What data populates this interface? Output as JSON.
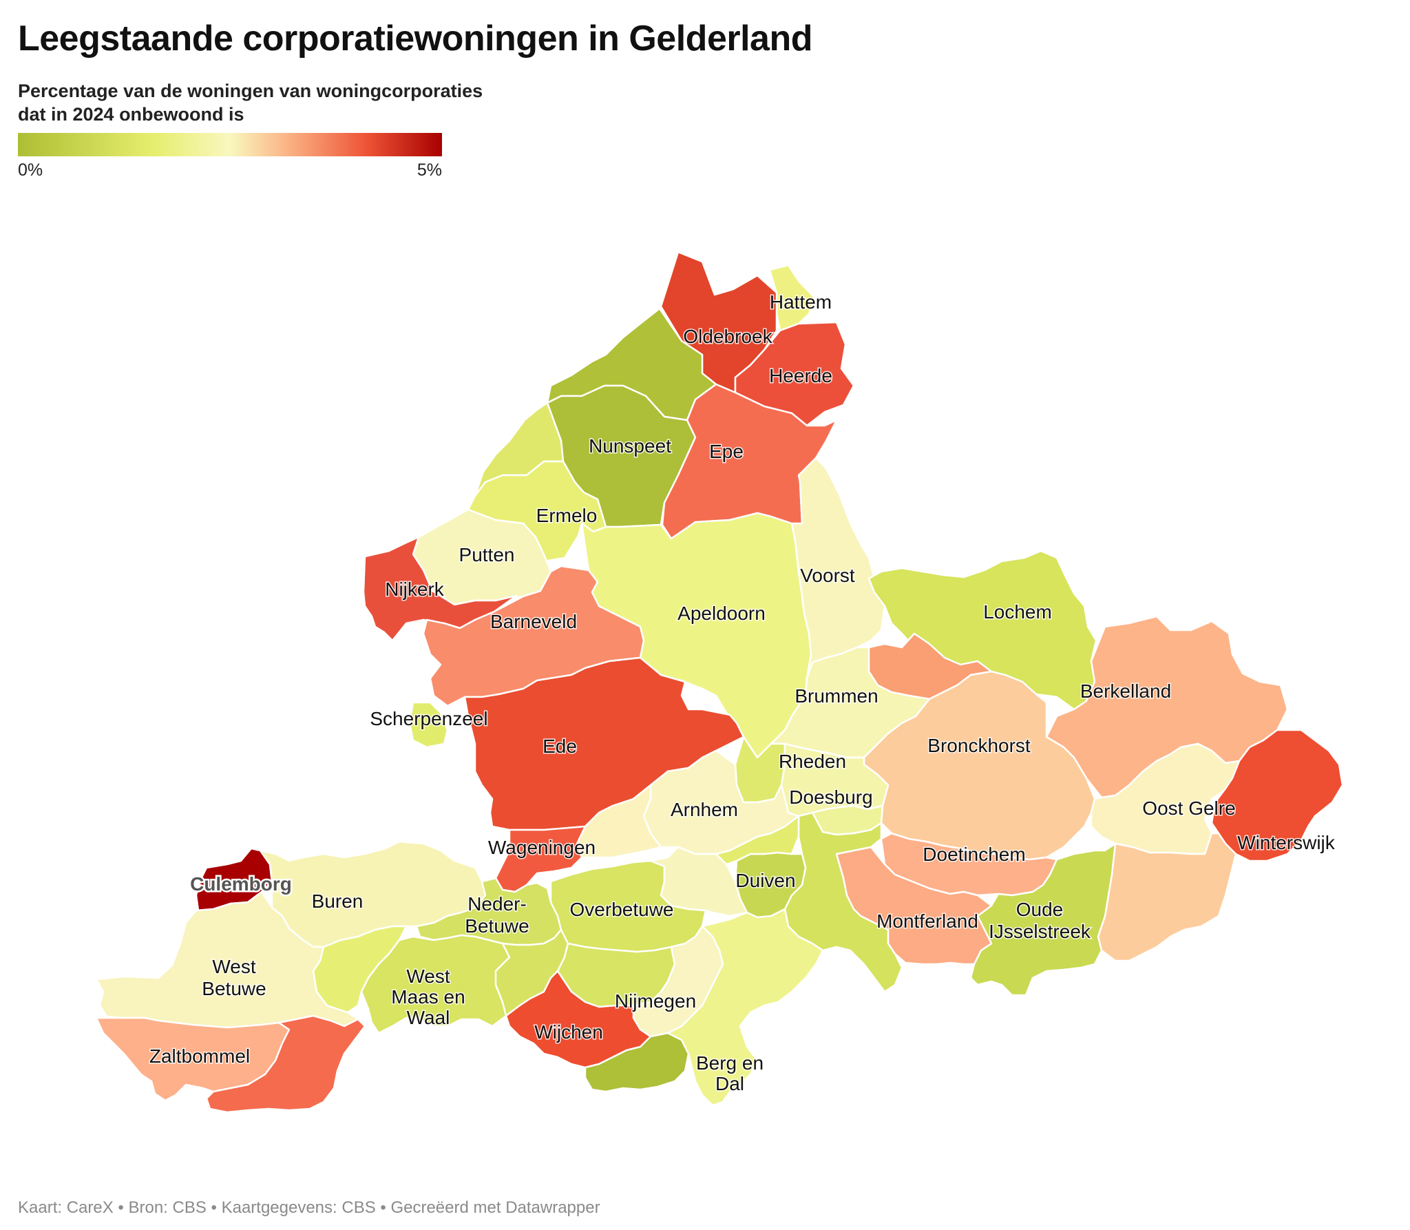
{
  "title": "Leegstaande corporatiewoningen in Gelderland",
  "subtitle": "Percentage van de woningen van woningcorporaties dat in 2024 onbewoond is",
  "legend": {
    "min_label": "0%",
    "max_label": "5%",
    "colors": [
      "#aebe34",
      "#e6ee6e",
      "#f9f7bf",
      "#fbb688",
      "#ee5536",
      "#a80000"
    ]
  },
  "footer": "Kaart: CareX • Bron: CBS • Kaartgegevens: CBS • Gecreëerd met Datawrapper",
  "municipalities": [
    {
      "id": "hattem",
      "name": "Hattem",
      "color": "#eef182"
    },
    {
      "id": "oldebroek",
      "name": "Oldebroek",
      "color": "#e2452b"
    },
    {
      "id": "heerde",
      "name": "Heerde",
      "color": "#ec503a"
    },
    {
      "id": "elburg",
      "name": "",
      "color": "#b0c038"
    },
    {
      "id": "nunspeet",
      "name": "Nunspeet",
      "color": "#adbf38"
    },
    {
      "id": "epe",
      "name": "Epe",
      "color": "#f56d51"
    },
    {
      "id": "harderwijk",
      "name": "",
      "color": "#dfe86a"
    },
    {
      "id": "ermelo",
      "name": "Ermelo",
      "color": "#e8ef74"
    },
    {
      "id": "putten",
      "name": "Putten",
      "color": "#f8f5bc"
    },
    {
      "id": "nijkerk",
      "name": "Nijkerk",
      "color": "#e9503b"
    },
    {
      "id": "barneveld",
      "name": "Barneveld",
      "color": "#f98c6a"
    },
    {
      "id": "apeldoorn",
      "name": "Apeldoorn",
      "color": "#eef386"
    },
    {
      "id": "voorst",
      "name": "Voorst",
      "color": "#f9f4bc"
    },
    {
      "id": "lochem",
      "name": "Lochem",
      "color": "#d7e45c"
    },
    {
      "id": "zutphen",
      "name": "",
      "color": "#fa9e73"
    },
    {
      "id": "brummen",
      "name": "Brummen",
      "color": "#f6f5b3"
    },
    {
      "id": "berkelland",
      "name": "Berkelland",
      "color": "#fdb488"
    },
    {
      "id": "bronckhorst",
      "name": "Bronckhorst",
      "color": "#fdcc9c"
    },
    {
      "id": "ede",
      "name": "Ede",
      "color": "#ea4d30"
    },
    {
      "id": "scherpenzeel",
      "name": "Scherpenzeel",
      "color": "#e2ec6c"
    },
    {
      "id": "rheden",
      "name": "Rheden",
      "color": "#f4f4ab"
    },
    {
      "id": "rozendaal",
      "name": "",
      "color": "#dfe96d"
    },
    {
      "id": "doesburg",
      "name": "Doesburg",
      "color": "#eef39a"
    },
    {
      "id": "arnhem",
      "name": "Arnhem",
      "color": "#f9f4c1"
    },
    {
      "id": "wageningen",
      "name": "Wageningen",
      "color": "#f25a3f"
    },
    {
      "id": "renkum",
      "name": "",
      "color": "#fbf2bd"
    },
    {
      "id": "oostgelre",
      "name": "Oost Gelre",
      "color": "#fbf2c0"
    },
    {
      "id": "winterswijk",
      "name": "Winterswijk",
      "color": "#ee4e32"
    },
    {
      "id": "aalten",
      "name": "",
      "color": "#fdcc9c"
    },
    {
      "id": "doetinchem",
      "name": "Doetinchem",
      "color": "#fdb08a"
    },
    {
      "id": "montferland",
      "name": "Montferland",
      "color": "#fcab84"
    },
    {
      "id": "oudeijsselstreek",
      "name": "Oude IJsselstreek",
      "color": "#c9d952"
    },
    {
      "id": "zevenaar",
      "name": "",
      "color": "#d5e25e"
    },
    {
      "id": "duiven",
      "name": "Duiven",
      "color": "#c7d751"
    },
    {
      "id": "westervoort",
      "name": "",
      "color": "#e4ec70"
    },
    {
      "id": "culemborg",
      "name": "Culemborg",
      "color": "#a80000"
    },
    {
      "id": "buren",
      "name": "Buren",
      "color": "#f7f3b4"
    },
    {
      "id": "nederbetuwe",
      "name": "Neder-Betuwe",
      "color": "#d4e162"
    },
    {
      "id": "overbetuwe",
      "name": "Overbetuwe",
      "color": "#d8e462"
    },
    {
      "id": "lingewaard",
      "name": "",
      "color": "#f8f4bd"
    },
    {
      "id": "westbetuwe",
      "name": "West Betuwe",
      "color": "#f9f3bd"
    },
    {
      "id": "tiel",
      "name": "",
      "color": "#e6ef73"
    },
    {
      "id": "westmaasenwaal",
      "name": "West Maas en Waal",
      "color": "#d8e462"
    },
    {
      "id": "druten",
      "name": "",
      "color": "#d7e262"
    },
    {
      "id": "beuningen",
      "name": "",
      "color": "#d8e463"
    },
    {
      "id": "nijmegen",
      "name": "Nijmegen",
      "color": "#f9f4c1"
    },
    {
      "id": "wijchen",
      "name": "Wijchen",
      "color": "#ee4d30"
    },
    {
      "id": "heumen",
      "name": "",
      "color": "#aebf38"
    },
    {
      "id": "bergendal",
      "name": "Berg en Dal",
      "color": "#eef38e"
    },
    {
      "id": "zaltbommel",
      "name": "Zaltbommel",
      "color": "#fdb08a"
    },
    {
      "id": "maasdriel",
      "name": "",
      "color": "#f56b4e"
    }
  ]
}
